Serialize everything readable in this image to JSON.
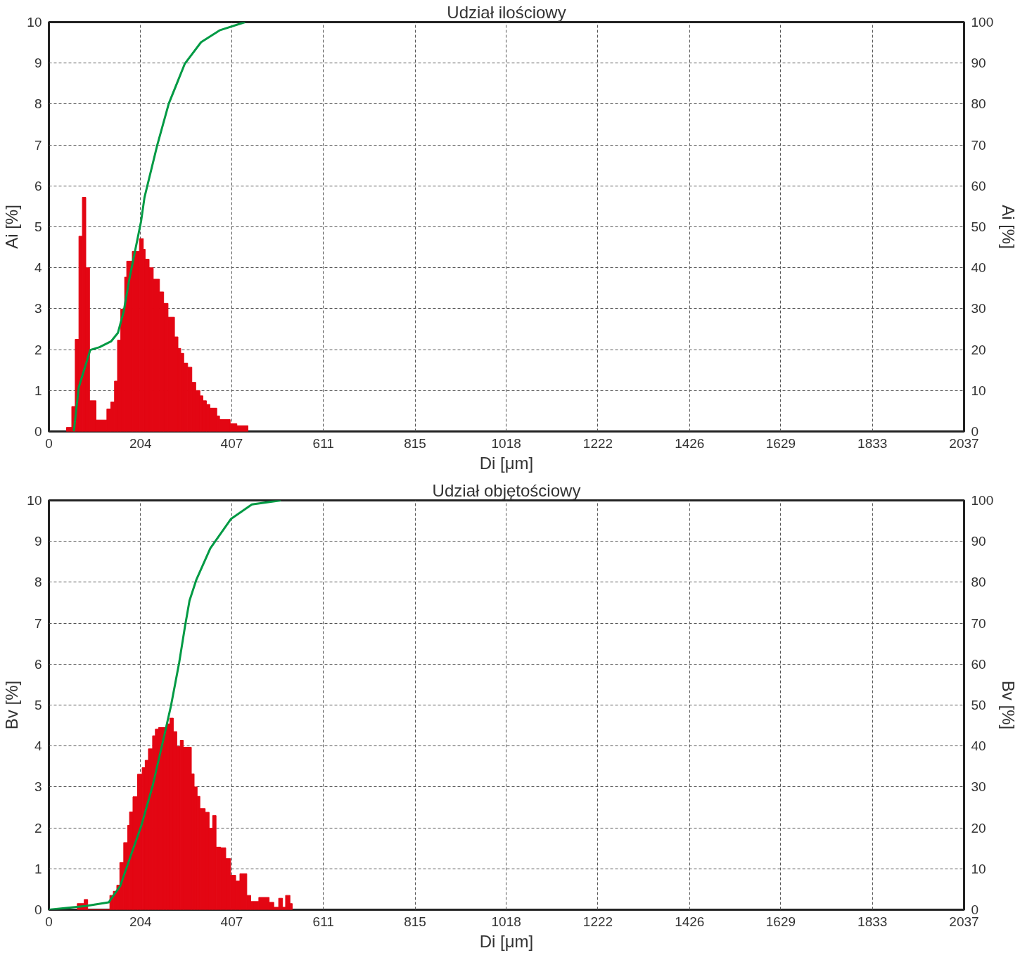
{
  "chart_data": [
    {
      "type": "histogram",
      "title": "Udział ilościowy",
      "xlabel": "Di [μm]",
      "ylabel": "Ai [%]",
      "y2label": "Ai [%]",
      "xlim": [
        0,
        2037
      ],
      "xticks": [
        0,
        204,
        407,
        611,
        815,
        1018,
        1222,
        1426,
        1629,
        1833,
        2037
      ],
      "ylim": [
        0,
        10
      ],
      "yticks": [
        0,
        1,
        2,
        3,
        4,
        5,
        6,
        7,
        8,
        9,
        10
      ],
      "y2lim": [
        0,
        100
      ],
      "y2ticks": [
        0,
        10,
        20,
        30,
        40,
        50,
        60,
        70,
        80,
        90,
        100
      ],
      "grid": true,
      "series": [
        {
          "color": "#e30613",
          "bins": [
            39.1,
            50.9,
            58.6,
            66.8,
            74.5,
            82.2,
            90.5,
            104.9,
            129.0,
            137.8,
            146.0,
            152.7,
            159.9,
            168.6,
            173.2,
            185.6,
            194.8,
            201.5,
            210.2,
            214.3,
            223.1,
            232.3,
            246.2,
            255.5,
            265.2,
            279.6,
            287.3,
            293.5,
            300.2,
            308.9,
            318.2,
            326.9,
            336.2,
            342.8,
            350.6,
            358.3,
            373.7,
            379.9,
            403.5,
            418.4,
            443.1
          ],
          "values": [
            0.1,
            0.61,
            2.25,
            4.77,
            5.72,
            4.0,
            0.75,
            0.28,
            0.55,
            0.72,
            1.23,
            2.23,
            2.99,
            3.77,
            4.16,
            4.4,
            4.4,
            4.71,
            4.45,
            4.21,
            4.0,
            3.72,
            3.41,
            3.13,
            2.79,
            2.31,
            2.03,
            1.91,
            1.67,
            1.57,
            1.2,
            1.0,
            0.87,
            0.75,
            0.66,
            0.57,
            0.38,
            0.29,
            0.19,
            0.14
          ]
        },
        {
          "type": "line",
          "axis": "y2",
          "color": "#009a44",
          "x": [
            55.5,
            66.3,
            92.0,
            112.6,
            138.3,
            153.7,
            166.5,
            179.4,
            192.2,
            205.1,
            212.8,
            241.1,
            266.8,
            302.8,
            338.7,
            379.9,
            436.4
          ],
          "values": [
            0,
            10.7,
            19.9,
            20.6,
            22.0,
            24.1,
            29.3,
            37.4,
            44.3,
            51.3,
            57.2,
            69.9,
            80.1,
            89.9,
            95.1,
            98.0,
            100
          ]
        }
      ]
    },
    {
      "type": "histogram",
      "title": "Udział objętościowy",
      "xlabel": "Di [μm]",
      "ylabel": "Bv [%]",
      "y2label": "Bv [%]",
      "xlim": [
        0,
        2037
      ],
      "xticks": [
        0,
        204,
        407,
        611,
        815,
        1018,
        1222,
        1426,
        1629,
        1833,
        2037
      ],
      "ylim": [
        0,
        10
      ],
      "yticks": [
        0,
        1,
        2,
        3,
        4,
        5,
        6,
        7,
        8,
        9,
        10
      ],
      "y2lim": [
        0,
        100
      ],
      "y2ticks": [
        0,
        10,
        20,
        30,
        40,
        50,
        60,
        70,
        80,
        90,
        100
      ],
      "grid": true,
      "series": [
        {
          "color": "#e30613",
          "bins": [
            63.2,
            78.6,
            86.4,
            135.7,
            143.4,
            151.1,
            157.8,
            166.5,
            175.2,
            179.4,
            187.1,
            197.3,
            207.6,
            214.3,
            221.5,
            230.8,
            236.9,
            244.1,
            254.4,
            261.6,
            269.3,
            277.0,
            284.7,
            292.4,
            299.1,
            317.1,
            323.3,
            330.0,
            336.1,
            347.9,
            356.7,
            364.4,
            372.1,
            382.4,
            393.7,
            404.5,
            415.8,
            425.1,
            440.5,
            449.2,
            456.9,
            467.2,
            490.3,
            500.6,
            511.4,
            520.1,
            526.8,
            536.6,
            541.7
          ],
          "values": [
            0.15,
            0.25,
            0,
            0.35,
            0.45,
            0.6,
            1.15,
            1.64,
            2.06,
            2.39,
            2.76,
            3.31,
            3.47,
            3.65,
            3.93,
            4.25,
            4.41,
            4.45,
            4.45,
            4.54,
            4.68,
            4.35,
            3.99,
            4.14,
            3.97,
            3.32,
            3.0,
            2.77,
            2.47,
            2.38,
            1.99,
            2.3,
            1.53,
            1.51,
            1.25,
            0.84,
            0.7,
            0.88,
            0.35,
            0.2,
            0.2,
            0.3,
            0.18,
            0.06,
            0.28,
            0.06,
            0.35,
            0.15
          ]
        },
        {
          "type": "line",
          "axis": "y2",
          "color": "#009a44",
          "x": [
            0,
            81.7,
            133.1,
            158.8,
            184.5,
            205.1,
            230.8,
            256.5,
            271.9,
            289.9,
            302.8,
            313.0,
            328.5,
            359.3,
            405.5,
            451.8,
            516.1
          ],
          "values": [
            0,
            0.9,
            1.8,
            5.8,
            13.9,
            20.3,
            30.2,
            42.4,
            49.9,
            60.3,
            69.1,
            75.5,
            80.7,
            88.3,
            95.5,
            99.0,
            100
          ]
        }
      ]
    }
  ]
}
